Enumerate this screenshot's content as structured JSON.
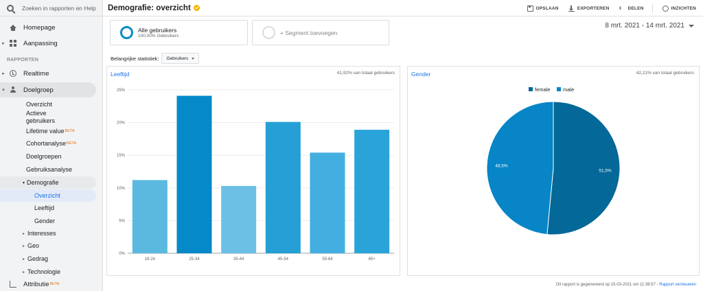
{
  "search": {
    "placeholder": "Zoeken in rapporten en Help"
  },
  "sidebar": {
    "home": "Homepage",
    "custom": "Aanpassing",
    "section_reports": "RAPPORTEN",
    "realtime": "Realtime",
    "audience": "Doelgroep",
    "audience_items": {
      "overview": "Overzicht",
      "active_users": "Actieve gebruikers",
      "lifetime": "Lifetime value",
      "cohort": "Cohortanalyse",
      "audiences": "Doelgroepen",
      "user_explorer": "Gebruiksanalyse",
      "demographics": "Demografie",
      "demo_overview": "Overzicht",
      "demo_age": "Leeftijd",
      "demo_gender": "Gender",
      "interests": "Interesses",
      "geo": "Geo",
      "behavior": "Gedrag",
      "technology": "Technologie"
    },
    "attribution": "Attributie",
    "beta": "BETA"
  },
  "header": {
    "title": "Demografie: overzicht",
    "save": "OPSLAAN",
    "export": "EXPORTEREN",
    "share": "DELEN",
    "insights": "INZICHTEN"
  },
  "segments": {
    "all_users": "Alle gebruikers",
    "all_users_pct": "100,00% Gebruikers",
    "add_segment": "+ Segment toevoegen"
  },
  "date_range": "8 mrt. 2021 - 14 mrt. 2021",
  "key_stats": {
    "label": "Belangrijke statistiek:",
    "selected": "Gebruikers"
  },
  "age_panel": {
    "title": "Leeftijd",
    "note": "41,92% van totaal gebruikers"
  },
  "gender_panel": {
    "title": "Gender",
    "note": "42,21% van totaal gebruikers"
  },
  "footer": {
    "text": "Dit rapport is gegenereerd op 15-03-2021 om 11:38:57 -",
    "link": "Rapport vernieuwen"
  },
  "colors": {
    "accent": "#1a73e8",
    "ring": "#058dc7",
    "pie_female": "#046899",
    "pie_male": "#0785c7"
  },
  "chart_data": [
    {
      "type": "bar",
      "title": "Leeftijd",
      "categories": [
        "18-24",
        "25-34",
        "35-44",
        "45-54",
        "55-64",
        "65+"
      ],
      "values": [
        11.2,
        24.1,
        10.3,
        20.1,
        15.4,
        18.9
      ],
      "colors": [
        "#5bb9e0",
        "#0589c9",
        "#6cc0e6",
        "#259fd6",
        "#42afe0",
        "#2aa3d9"
      ],
      "yticks": [
        "0%",
        "5%",
        "10%",
        "15%",
        "20%",
        "25%"
      ],
      "ylim": [
        0,
        25
      ]
    },
    {
      "type": "pie",
      "title": "Gender",
      "legend": "top",
      "labels": [
        "female",
        "male"
      ],
      "values": [
        51.5,
        48.5
      ],
      "value_labels": [
        "51,5%",
        "48,5%"
      ],
      "colors": [
        "#046899",
        "#0785c7"
      ]
    }
  ]
}
